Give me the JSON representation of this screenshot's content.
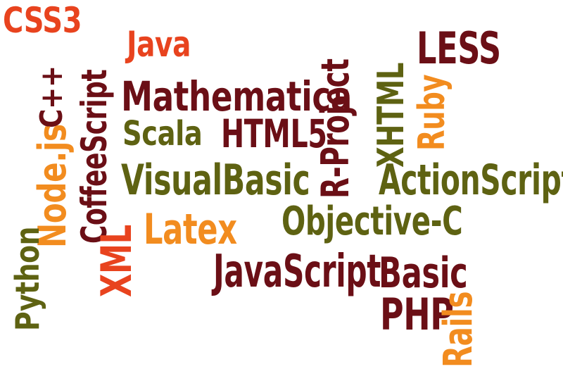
{
  "colors": {
    "orange_red": "#E8431E",
    "maroon": "#6B0F16",
    "olive": "#5E6212",
    "orange": "#F28C1F"
  },
  "words": [
    {
      "id": "css3",
      "text": "CSS3",
      "color": "#E8431E"
    },
    {
      "id": "java",
      "text": "Java",
      "color": "#E8431E"
    },
    {
      "id": "coffeescript",
      "text": "CoffeeScript",
      "color": "#6B0F16"
    },
    {
      "id": "cpp",
      "text": "C++",
      "color": "#6B0F16"
    },
    {
      "id": "mathematica",
      "text": "Mathematica",
      "color": "#6B0F16"
    },
    {
      "id": "less",
      "text": "LESS",
      "color": "#6B0F16"
    },
    {
      "id": "xhtml",
      "text": "XHTML",
      "color": "#5E6212"
    },
    {
      "id": "ruby",
      "text": "Ruby",
      "color": "#F28C1F"
    },
    {
      "id": "r-project",
      "text": "R-Project",
      "color": "#6B0F16"
    },
    {
      "id": "scala",
      "text": "Scala",
      "color": "#5E6212"
    },
    {
      "id": "html5",
      "text": "HTML5",
      "color": "#6B0F16"
    },
    {
      "id": "nodejs",
      "text": "Node.js",
      "color": "#F28C1F"
    },
    {
      "id": "python",
      "text": "Python",
      "color": "#5E6212"
    },
    {
      "id": "visualbasic",
      "text": "VisualBasic",
      "color": "#5E6212"
    },
    {
      "id": "actionscript",
      "text": "ActionScript",
      "color": "#5E6212"
    },
    {
      "id": "xml",
      "text": "XML",
      "color": "#E8431E"
    },
    {
      "id": "latex",
      "text": "Latex",
      "color": "#F28C1F"
    },
    {
      "id": "objective-c",
      "text": "Objective-C",
      "color": "#5E6212"
    },
    {
      "id": "javascript",
      "text": "JavaScript",
      "color": "#6B0F16"
    },
    {
      "id": "basic",
      "text": "Basic",
      "color": "#6B0F16"
    },
    {
      "id": "php",
      "text": "PHP",
      "color": "#6B0F16"
    },
    {
      "id": "rails",
      "text": "Rails",
      "color": "#F28C1F"
    }
  ]
}
